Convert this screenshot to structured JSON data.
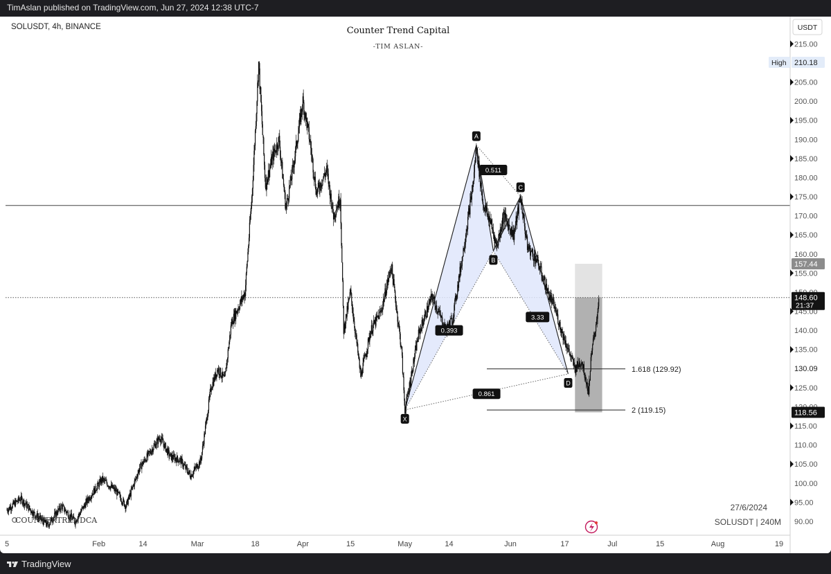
{
  "publisher": "TimAslan published on TradingView.com, Jun 27, 2024 12:38 UTC-7",
  "symbol": "SOLUSDT, 4h, BINANCE",
  "brand": {
    "title": "Counter Trend Capital",
    "subtitle": "-TIM ASLAN-",
    "watermark": "COUNTERTRENDCA"
  },
  "footer": {
    "date": "27/6/2024",
    "ticker": "SOLUSDT | 240M",
    "tv_label": "TradingView"
  },
  "currency_button": "USDT",
  "colors": {
    "harmonic_fill": "#dfe6fb",
    "harmonic_stroke": "#1b1b1b",
    "zone_light": "#d9d9d9",
    "zone_dark": "#a9a9a9",
    "candles": "#111111",
    "background": "#ffffff"
  },
  "chart_data": {
    "type": "candlestick",
    "title": "Counter Trend Capital",
    "subtitle": "-TIM ASLAN-",
    "xlabel": "",
    "ylabel": "",
    "ylim": [
      86,
      218
    ],
    "xlim": [
      "2024-01-05",
      "2024-08-19"
    ],
    "x_ticks": [
      {
        "label": "5",
        "date": "2024-01-05"
      },
      {
        "label": "Feb",
        "date": "2024-02-01"
      },
      {
        "label": "14",
        "date": "2024-02-14"
      },
      {
        "label": "Mar",
        "date": "2024-03-01"
      },
      {
        "label": "18",
        "date": "2024-03-18"
      },
      {
        "label": "Apr",
        "date": "2024-04-01"
      },
      {
        "label": "15",
        "date": "2024-04-15"
      },
      {
        "label": "May",
        "date": "2024-05-01"
      },
      {
        "label": "14",
        "date": "2024-05-14"
      },
      {
        "label": "Jun",
        "date": "2024-06-01"
      },
      {
        "label": "17",
        "date": "2024-06-17"
      },
      {
        "label": "Jul",
        "date": "2024-07-01"
      },
      {
        "label": "15",
        "date": "2024-07-15"
      },
      {
        "label": "Aug",
        "date": "2024-08-01"
      },
      {
        "label": "19",
        "date": "2024-08-19"
      }
    ],
    "y_ticks": [
      90,
      95,
      100,
      105,
      110,
      115,
      120,
      125,
      130,
      135,
      140,
      145,
      150,
      155,
      160,
      165,
      170,
      175,
      180,
      185,
      190,
      195,
      200,
      205,
      210,
      215
    ],
    "price_path": [
      [
        "2024-01-05",
        93
      ],
      [
        "2024-01-09",
        96
      ],
      [
        "2024-01-13",
        92
      ],
      [
        "2024-01-17",
        89
      ],
      [
        "2024-01-21",
        94
      ],
      [
        "2024-01-25",
        90
      ],
      [
        "2024-01-29",
        96
      ],
      [
        "2024-02-02",
        101
      ],
      [
        "2024-02-06",
        98
      ],
      [
        "2024-02-09",
        94
      ],
      [
        "2024-02-13",
        104
      ],
      [
        "2024-02-16",
        108
      ],
      [
        "2024-02-19",
        112
      ],
      [
        "2024-02-22",
        107
      ],
      [
        "2024-02-25",
        106
      ],
      [
        "2024-02-28",
        102
      ],
      [
        "2024-03-02",
        106
      ],
      [
        "2024-03-05",
        125
      ],
      [
        "2024-03-07",
        130
      ],
      [
        "2024-03-09",
        127
      ],
      [
        "2024-03-11",
        142
      ],
      [
        "2024-03-13",
        146
      ],
      [
        "2024-03-15",
        150
      ],
      [
        "2024-03-17",
        175
      ],
      [
        "2024-03-18",
        192
      ],
      [
        "2024-03-19",
        210
      ],
      [
        "2024-03-21",
        178
      ],
      [
        "2024-03-23",
        185
      ],
      [
        "2024-03-25",
        190
      ],
      [
        "2024-03-27",
        172
      ],
      [
        "2024-03-29",
        182
      ],
      [
        "2024-04-01",
        200
      ],
      [
        "2024-04-03",
        190
      ],
      [
        "2024-04-05",
        176
      ],
      [
        "2024-04-08",
        182
      ],
      [
        "2024-04-10",
        170
      ],
      [
        "2024-04-12",
        175
      ],
      [
        "2024-04-13",
        140
      ],
      [
        "2024-04-15",
        150
      ],
      [
        "2024-04-18",
        128
      ],
      [
        "2024-04-21",
        140
      ],
      [
        "2024-04-24",
        145
      ],
      [
        "2024-04-27",
        157
      ],
      [
        "2024-04-30",
        135
      ],
      [
        "2024-05-01",
        119
      ],
      [
        "2024-05-05",
        139
      ],
      [
        "2024-05-09",
        149
      ],
      [
        "2024-05-13",
        140
      ],
      [
        "2024-05-15",
        143
      ],
      [
        "2024-05-18",
        160
      ],
      [
        "2024-05-21",
        178
      ],
      [
        "2024-05-22",
        188
      ],
      [
        "2024-05-24",
        173
      ],
      [
        "2024-05-26",
        169
      ],
      [
        "2024-05-28",
        162
      ],
      [
        "2024-05-30",
        170
      ],
      [
        "2024-06-02",
        165
      ],
      [
        "2024-06-04",
        175
      ],
      [
        "2024-06-06",
        162
      ],
      [
        "2024-06-09",
        158
      ],
      [
        "2024-06-12",
        150
      ],
      [
        "2024-06-14",
        146
      ],
      [
        "2024-06-16",
        140
      ],
      [
        "2024-06-18",
        135
      ],
      [
        "2024-06-20",
        130
      ],
      [
        "2024-06-22",
        132
      ],
      [
        "2024-06-24",
        124
      ],
      [
        "2024-06-25",
        136
      ],
      [
        "2024-06-26",
        139
      ],
      [
        "2024-06-27",
        148.6
      ]
    ],
    "harmonic": {
      "points": [
        {
          "label": "X",
          "date": "2024-05-01",
          "price": 119.2
        },
        {
          "label": "A",
          "date": "2024-05-22",
          "price": 188.5
        },
        {
          "label": "B",
          "date": "2024-05-27",
          "price": 160.8
        },
        {
          "label": "C",
          "date": "2024-06-04",
          "price": 175.1
        },
        {
          "label": "D",
          "date": "2024-06-18",
          "price": 128.6
        }
      ],
      "ratios": [
        {
          "label": "0.511",
          "date": "2024-05-27",
          "price": 182.0
        },
        {
          "label": "0.393",
          "date": "2024-05-14",
          "price": 140.0
        },
        {
          "label": "3.33",
          "date": "2024-06-09",
          "price": 143.5
        },
        {
          "label": "0.861",
          "date": "2024-05-25",
          "price": 123.4
        }
      ]
    },
    "fib_levels": [
      {
        "label": "1.618 (129.92)",
        "price": 129.92
      },
      {
        "label": "2 (119.15)",
        "price": 119.15
      }
    ],
    "horizontal_lines": [
      {
        "price": 172.7,
        "style": "solid"
      }
    ],
    "current_price_line": 148.6,
    "zones": [
      {
        "name": "upper",
        "from": "2024-06-20",
        "to": "2024-06-28",
        "top": 157.44,
        "bottom": 148.6
      },
      {
        "name": "lower",
        "from": "2024-06-20",
        "to": "2024-06-28",
        "top": 148.6,
        "bottom": 118.56
      }
    ],
    "price_labels": [
      {
        "text": "High",
        "value": "210.18",
        "price": 210.18,
        "style": "high"
      },
      {
        "text": "",
        "value": "157.44",
        "price": 157.44,
        "style": "gray"
      },
      {
        "text": "21:37",
        "value": "148.60",
        "price": 148.6,
        "style": "dark"
      },
      {
        "text": "",
        "value": "130.09",
        "price": 130.09,
        "style": "plain"
      },
      {
        "text": "",
        "value": "118.56",
        "price": 118.56,
        "style": "dark"
      }
    ],
    "legend": "none"
  }
}
